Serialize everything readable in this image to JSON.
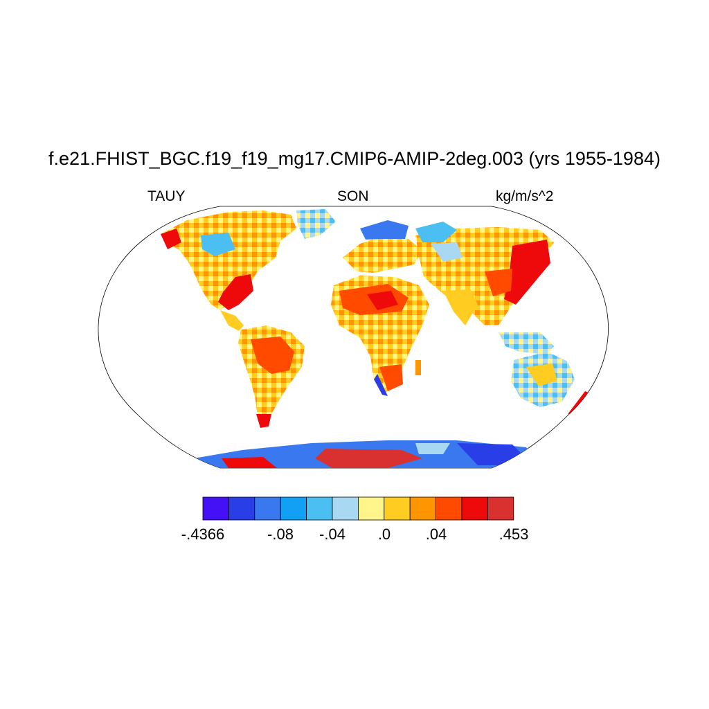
{
  "title": "f.e21.FHIST_BGC.f19_f19_mg17.CMIP6-AMIP-2deg.003 (yrs 1955-1984)",
  "left_label": "TAUY",
  "center_label": "SON",
  "right_label": "kg/m/s^2",
  "colorbar": {
    "colors": [
      "#4410f5",
      "#2a3ee8",
      "#3a78f0",
      "#12a0f5",
      "#4cbff2",
      "#a8d8f2",
      "#fff58a",
      "#ffcc22",
      "#ff9500",
      "#ff4a00",
      "#ee0a0a",
      "#d93030"
    ],
    "labels": [
      {
        "text": ".4366",
        "index": 0,
        "sign": "-"
      },
      {
        "text": "-.08",
        "index": 3
      },
      {
        "text": "-.04",
        "index": 5
      },
      {
        "text": ".0",
        "index": 7
      },
      {
        "text": ".04",
        "index": 9
      },
      {
        "text": ".453",
        "index": 12
      }
    ]
  },
  "labels_text": {
    "l0": "-.4366",
    "l1": "-.08",
    "l2": "-.04",
    "l3": ".0",
    "l4": ".04",
    "l5": ".453"
  },
  "land_color": "#ffcf3a",
  "ocean_color": "#ffffff"
}
